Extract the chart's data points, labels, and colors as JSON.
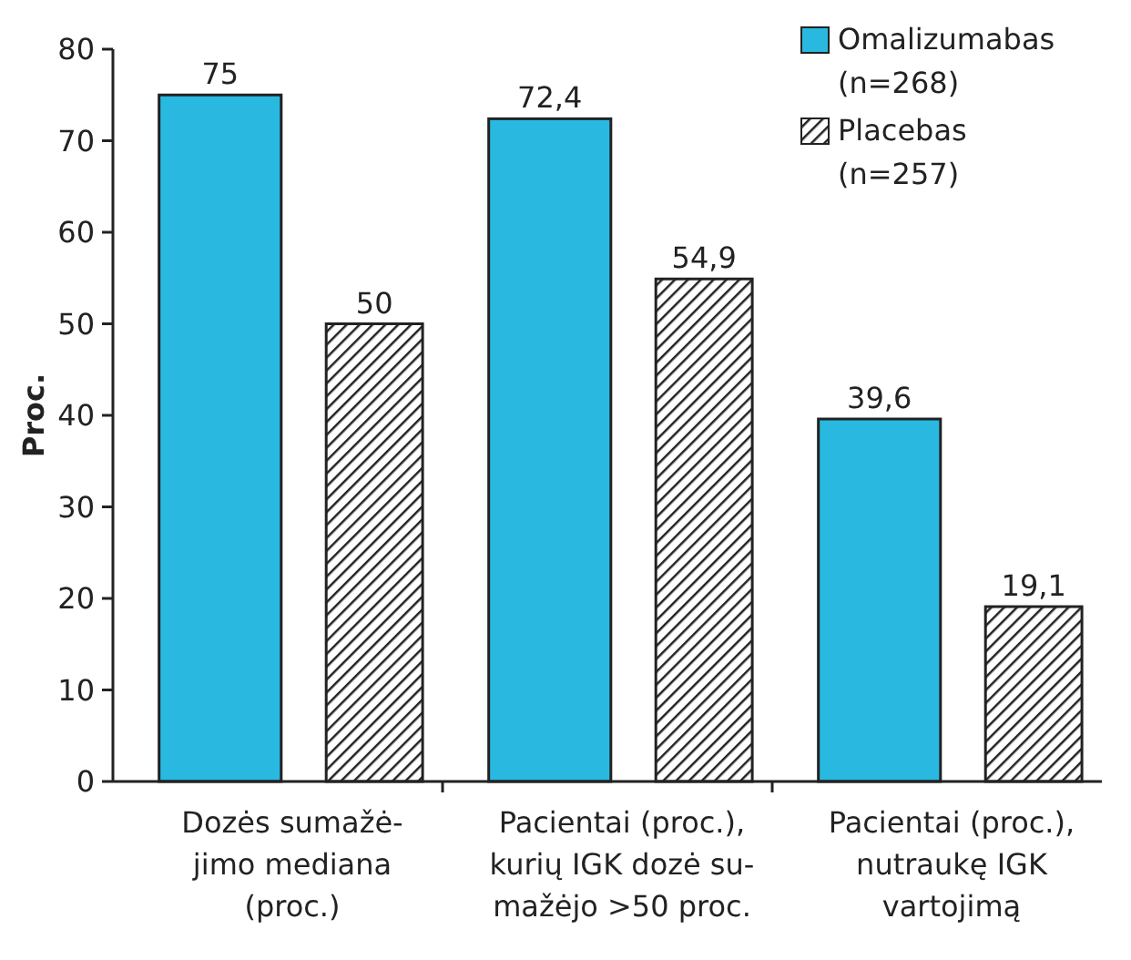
{
  "chart_data": {
    "type": "bar",
    "ylabel": "Proc.",
    "categories": [
      "Dozės sumažė-\njimo mediana\n(proc.)",
      "Pacientai (proc.),\nkurių IGK dozė su-\nmažėjo >50 proc.",
      "Pacientai (proc.),\nnutraukę IGK\nvartojimą"
    ],
    "series": [
      {
        "name": "Omalizumabas\n(n=268)",
        "color": "#29b9e0",
        "values": [
          75,
          72.4,
          39.6
        ],
        "value_labels": [
          "75",
          "72,4",
          "39,6"
        ]
      },
      {
        "name": "Placebas\n(n=257)",
        "color": "#222222",
        "values": [
          50,
          54.9,
          19.1
        ],
        "value_labels": [
          "50",
          "54,9",
          "19,1"
        ]
      }
    ],
    "ylim": [
      0,
      80
    ],
    "yticks": [
      0,
      10,
      20,
      30,
      40,
      50,
      60,
      70,
      80
    ],
    "grid": false,
    "legend": "top right"
  }
}
